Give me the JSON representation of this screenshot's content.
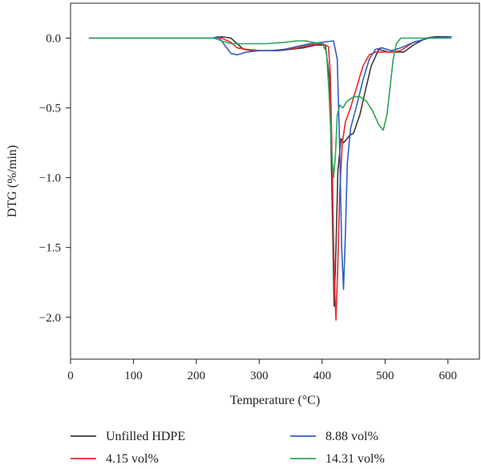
{
  "chart_data": {
    "type": "line",
    "xlabel": "Temperature (°C)",
    "ylabel": "DTG (%/min)",
    "xlim": [
      0,
      650
    ],
    "ylim": [
      -2.3,
      0.25
    ],
    "xticks": [
      0,
      100,
      200,
      300,
      400,
      500,
      600
    ],
    "yticks": [
      0.0,
      -0.5,
      -1.0,
      -1.5,
      -2.0
    ],
    "xtick_labels": [
      "0",
      "100",
      "200",
      "300",
      "400",
      "500",
      "600"
    ],
    "ytick_labels": [
      "0.0",
      "−0.5",
      "−1.0",
      "−1.5",
      "−2.0"
    ],
    "grid": false,
    "legend_position": "bottom",
    "series": [
      {
        "name": "Unfilled HDPE",
        "color": "#3a3a3a",
        "points": [
          [
            30,
            0
          ],
          [
            200,
            0
          ],
          [
            228,
            0
          ],
          [
            240,
            0.01
          ],
          [
            255,
            0
          ],
          [
            265,
            -0.04
          ],
          [
            275,
            -0.08
          ],
          [
            290,
            -0.09
          ],
          [
            310,
            -0.09
          ],
          [
            330,
            -0.09
          ],
          [
            350,
            -0.08
          ],
          [
            370,
            -0.07
          ],
          [
            390,
            -0.05
          ],
          [
            405,
            -0.05
          ],
          [
            412,
            -0.3
          ],
          [
            416,
            -1.2
          ],
          [
            419,
            -1.92
          ],
          [
            422,
            -1.5
          ],
          [
            425,
            -0.95
          ],
          [
            430,
            -0.72
          ],
          [
            434,
            -0.75
          ],
          [
            438,
            -0.73
          ],
          [
            443,
            -0.7
          ],
          [
            450,
            -0.68
          ],
          [
            460,
            -0.55
          ],
          [
            470,
            -0.35
          ],
          [
            478,
            -0.2
          ],
          [
            490,
            -0.08
          ],
          [
            505,
            -0.1
          ],
          [
            520,
            -0.1
          ],
          [
            530,
            -0.1
          ],
          [
            545,
            -0.05
          ],
          [
            565,
            0
          ],
          [
            580,
            0.01
          ],
          [
            605,
            0.01
          ]
        ]
      },
      {
        "name": "4.15 vol%",
        "color": "#e8262d",
        "points": [
          [
            225,
            0
          ],
          [
            240,
            0
          ],
          [
            255,
            -0.03
          ],
          [
            265,
            -0.07
          ],
          [
            280,
            -0.08
          ],
          [
            300,
            -0.09
          ],
          [
            320,
            -0.09
          ],
          [
            340,
            -0.08
          ],
          [
            360,
            -0.07
          ],
          [
            380,
            -0.05
          ],
          [
            400,
            -0.04
          ],
          [
            410,
            -0.06
          ],
          [
            413,
            -0.25
          ],
          [
            416,
            -0.9
          ],
          [
            419,
            -1.7
          ],
          [
            422,
            -2.02
          ],
          [
            425,
            -1.6
          ],
          [
            428,
            -1.1
          ],
          [
            432,
            -0.75
          ],
          [
            437,
            -0.6
          ],
          [
            445,
            -0.5
          ],
          [
            455,
            -0.35
          ],
          [
            465,
            -0.2
          ],
          [
            475,
            -0.12
          ],
          [
            485,
            -0.1
          ],
          [
            495,
            -0.1
          ],
          [
            510,
            -0.1
          ],
          [
            525,
            -0.09
          ],
          [
            545,
            -0.03
          ],
          [
            570,
            0
          ],
          [
            600,
            0
          ]
        ]
      },
      {
        "name": "8.88 vol%",
        "color": "#2f5fc4",
        "points": [
          [
            225,
            0
          ],
          [
            235,
            0.01
          ],
          [
            245,
            -0.05
          ],
          [
            255,
            -0.11
          ],
          [
            265,
            -0.12
          ],
          [
            280,
            -0.1
          ],
          [
            300,
            -0.09
          ],
          [
            320,
            -0.09
          ],
          [
            340,
            -0.08
          ],
          [
            360,
            -0.06
          ],
          [
            380,
            -0.04
          ],
          [
            400,
            -0.03
          ],
          [
            418,
            -0.02
          ],
          [
            424,
            -0.15
          ],
          [
            428,
            -0.8
          ],
          [
            431,
            -1.5
          ],
          [
            434,
            -1.8
          ],
          [
            437,
            -1.4
          ],
          [
            440,
            -0.9
          ],
          [
            445,
            -0.65
          ],
          [
            455,
            -0.48
          ],
          [
            465,
            -0.3
          ],
          [
            475,
            -0.15
          ],
          [
            485,
            -0.08
          ],
          [
            495,
            -0.07
          ],
          [
            510,
            -0.09
          ],
          [
            525,
            -0.07
          ],
          [
            545,
            -0.03
          ],
          [
            570,
            0
          ],
          [
            605,
            0.01
          ]
        ]
      },
      {
        "name": "14.31 vol%",
        "color": "#2ca45a",
        "points": [
          [
            30,
            0
          ],
          [
            200,
            0
          ],
          [
            228,
            0
          ],
          [
            240,
            -0.02
          ],
          [
            255,
            -0.04
          ],
          [
            280,
            -0.04
          ],
          [
            310,
            -0.04
          ],
          [
            340,
            -0.03
          ],
          [
            360,
            -0.02
          ],
          [
            375,
            -0.02
          ],
          [
            385,
            -0.03
          ],
          [
            400,
            -0.04
          ],
          [
            407,
            -0.1
          ],
          [
            411,
            -0.4
          ],
          [
            415,
            -0.8
          ],
          [
            418,
            -1.0
          ],
          [
            421,
            -0.85
          ],
          [
            424,
            -0.55
          ],
          [
            428,
            -0.48
          ],
          [
            433,
            -0.5
          ],
          [
            440,
            -0.45
          ],
          [
            450,
            -0.42
          ],
          [
            460,
            -0.42
          ],
          [
            470,
            -0.45
          ],
          [
            480,
            -0.52
          ],
          [
            490,
            -0.62
          ],
          [
            497,
            -0.66
          ],
          [
            503,
            -0.55
          ],
          [
            508,
            -0.35
          ],
          [
            513,
            -0.15
          ],
          [
            518,
            -0.04
          ],
          [
            525,
            0
          ],
          [
            545,
            0
          ],
          [
            575,
            0
          ],
          [
            605,
            0
          ]
        ]
      }
    ]
  }
}
